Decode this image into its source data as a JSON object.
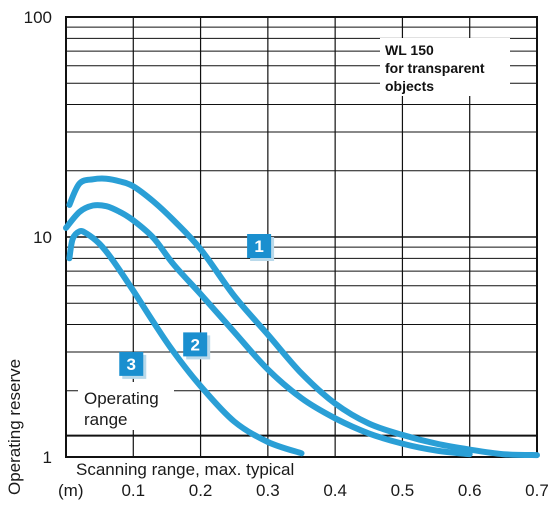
{
  "chart_data": {
    "type": "line",
    "title_lines": [
      "WL 150",
      "for transparent",
      "objects"
    ],
    "xlabel": "Scanning range, max. typical",
    "x_unit": "(m)",
    "ylabel": "Operating reserve",
    "y_scale": "log",
    "xlim": [
      0,
      0.7
    ],
    "ylim": [
      1,
      100
    ],
    "x_ticks": [
      "0.1",
      "0.2",
      "0.3",
      "0.4",
      "0.5",
      "0.6",
      "0.7"
    ],
    "y_ticks": [
      "1",
      "10",
      "100"
    ],
    "grid": true,
    "annotations": {
      "operating_range": [
        "Operating",
        "range"
      ]
    },
    "threshold_y": 1.25,
    "curve_color": "#2a9fd6",
    "badge_color": "#1a8fcf",
    "series": [
      {
        "name": "1",
        "x": [
          0.005,
          0.02,
          0.04,
          0.06,
          0.08,
          0.1,
          0.13,
          0.16,
          0.2,
          0.25,
          0.3,
          0.35,
          0.4,
          0.45,
          0.5,
          0.55,
          0.6,
          0.65,
          0.7
        ],
        "y": [
          14,
          17.5,
          18.3,
          18.4,
          17.9,
          17.0,
          14.5,
          11.9,
          8.8,
          5.4,
          3.6,
          2.4,
          1.75,
          1.42,
          1.26,
          1.15,
          1.08,
          1.03,
          1.02
        ]
      },
      {
        "name": "2",
        "x": [
          0.0,
          0.02,
          0.04,
          0.06,
          0.08,
          0.1,
          0.13,
          0.16,
          0.2,
          0.25,
          0.3,
          0.35,
          0.4,
          0.45,
          0.5,
          0.55,
          0.6
        ],
        "y": [
          11,
          13,
          13.9,
          13.8,
          13.0,
          11.9,
          9.9,
          7.5,
          5.5,
          3.7,
          2.5,
          1.85,
          1.5,
          1.28,
          1.15,
          1.07,
          1.03
        ]
      },
      {
        "name": "3",
        "x": [
          0.005,
          0.01,
          0.02,
          0.03,
          0.05,
          0.07,
          0.1,
          0.13,
          0.16,
          0.2,
          0.25,
          0.3,
          0.35
        ],
        "y": [
          8.0,
          9.8,
          10.6,
          10.4,
          9.3,
          7.8,
          5.7,
          4.1,
          3.0,
          2.1,
          1.45,
          1.17,
          1.04
        ]
      }
    ]
  }
}
